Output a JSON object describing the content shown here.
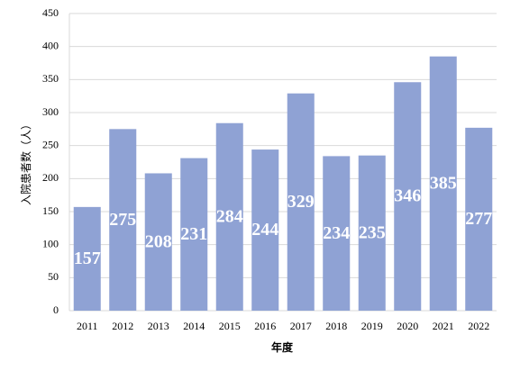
{
  "chart_data": {
    "type": "bar",
    "categories": [
      "2011",
      "2012",
      "2013",
      "2014",
      "2015",
      "2016",
      "2017",
      "2018",
      "2019",
      "2020",
      "2021",
      "2022"
    ],
    "values": [
      157,
      275,
      208,
      231,
      284,
      244,
      329,
      234,
      235,
      346,
      385,
      277
    ],
    "color": "#8fa2d4",
    "x_label": "年度",
    "y_label": "入院患者数（人）",
    "ylim": [
      0,
      450
    ],
    "yticks": [
      0,
      50,
      100,
      150,
      200,
      250,
      300,
      350,
      400,
      450
    ],
    "grid": true
  }
}
